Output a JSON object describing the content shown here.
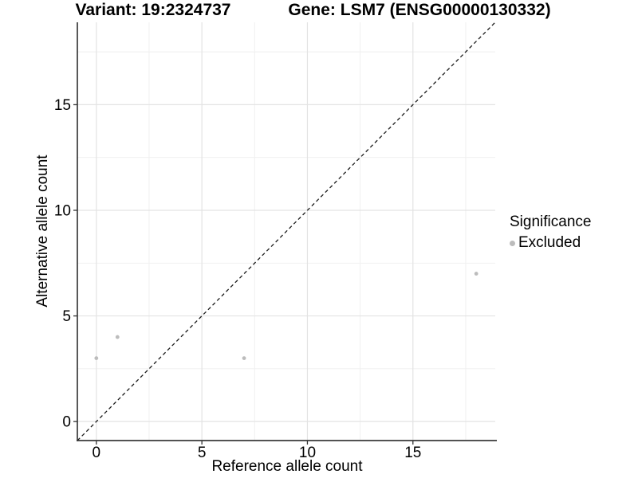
{
  "chart_data": {
    "type": "scatter",
    "title_left": "Variant: 19:2324737",
    "title_right": "Gene: LSM7 (ENSG00000130332)",
    "xlabel": "Reference allele count",
    "ylabel": "Alternative allele count",
    "xlim": [
      -0.9,
      18.9
    ],
    "ylim": [
      -0.9,
      18.9
    ],
    "xticks": [
      0,
      5,
      10,
      15
    ],
    "yticks": [
      0,
      5,
      10,
      15
    ],
    "x_minor_ticks": [
      2.5,
      7.5,
      12.5,
      17.5
    ],
    "y_minor_ticks": [
      2.5,
      7.5,
      12.5,
      17.5
    ],
    "grid": "major and minor, light gray on white",
    "series": [
      {
        "name": "Excluded",
        "color": "#bcbcbc",
        "points": [
          [
            0,
            3
          ],
          [
            1,
            4
          ],
          [
            7,
            3
          ],
          [
            18,
            7
          ]
        ]
      }
    ],
    "reference_line": {
      "kind": "identity y=x",
      "style": "dashed",
      "color": "#1a1a1a"
    },
    "legend": {
      "title": "Significance",
      "position": "right",
      "items": [
        {
          "label": "Excluded",
          "color": "#bcbcbc"
        }
      ]
    }
  },
  "colors": {
    "background": "#ffffff",
    "grid_major": "#e3e3e3",
    "grid_minor": "#efefef",
    "axis_line": "#3a3a3a",
    "tick_mark": "#333333",
    "text": "#000000",
    "point": "#bcbcbc"
  }
}
